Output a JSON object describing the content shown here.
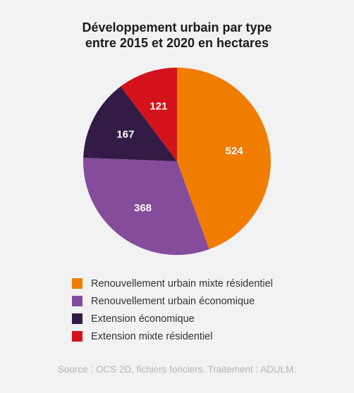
{
  "chart_data": {
    "type": "pie",
    "title_lines": [
      "Développement urbain par type",
      "entre 2015 et 2020 en hectares"
    ],
    "categories": [
      "Renouvellement urbain mixte résidentiel",
      "Renouvellement urbain économique",
      "Extension économique",
      "Extension mixte résidentiel"
    ],
    "values": [
      524,
      368,
      167,
      121
    ],
    "value_labels": [
      "524",
      "368",
      "167",
      "121"
    ],
    "colors": [
      "#f07d00",
      "#844c9b",
      "#321b44",
      "#d3121b"
    ],
    "legend_position": "bottom-left",
    "source": "Source : OCS 2D, fichiers fonciers. Traitement : ADULM."
  }
}
